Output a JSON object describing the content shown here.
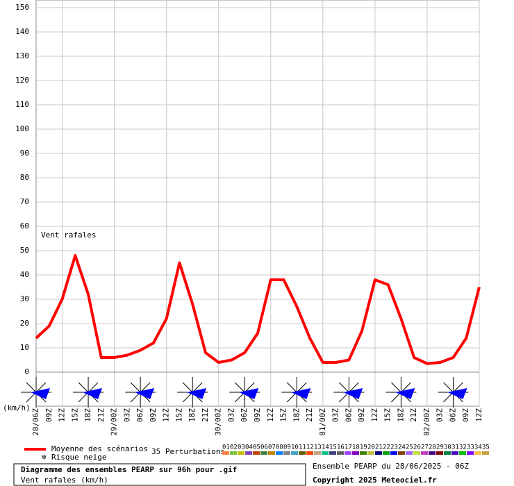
{
  "chart_data": {
    "type": "line",
    "annotation": "Vent rafales",
    "y_unit": "(km/h)",
    "categories": [
      "28/06Z",
      "09Z",
      "12Z",
      "15Z",
      "18Z",
      "21Z",
      "29/00Z",
      "03Z",
      "06Z",
      "09Z",
      "12Z",
      "15Z",
      "18Z",
      "21Z",
      "30/00Z",
      "03Z",
      "06Z",
      "09Z",
      "12Z",
      "15Z",
      "18Z",
      "21Z",
      "01/00Z",
      "03Z",
      "06Z",
      "09Z",
      "12Z",
      "15Z",
      "18Z",
      "21Z",
      "02/00Z",
      "03Z",
      "06Z",
      "09Z",
      "12Z"
    ],
    "series": [
      {
        "name": "Moyenne des scénarios",
        "color": "#ff0000",
        "values": [
          14,
          19,
          30,
          48,
          32,
          6,
          6,
          7,
          9,
          12,
          22,
          45,
          28,
          8,
          4,
          5,
          8,
          16,
          38,
          38,
          27,
          14,
          4,
          4,
          5,
          17,
          38,
          36,
          22,
          6,
          3.5,
          4,
          6,
          14,
          35
        ]
      }
    ],
    "ylim": [
      0,
      150
    ],
    "yticks": [
      0,
      10,
      20,
      30,
      40,
      50,
      60,
      70,
      80,
      90,
      100,
      110,
      120,
      130,
      140,
      150
    ],
    "grid": true,
    "legend": {
      "snow": "Risque neige",
      "perturbations_title": "35 Perturbations",
      "perturbations": [
        {
          "label": "01",
          "color": "#ff8040"
        },
        {
          "label": "02",
          "color": "#80c040"
        },
        {
          "label": "03",
          "color": "#c0c000"
        },
        {
          "label": "04",
          "color": "#8040c0"
        },
        {
          "label": "05",
          "color": "#c04000"
        },
        {
          "label": "06",
          "color": "#408040"
        },
        {
          "label": "07",
          "color": "#c08000"
        },
        {
          "label": "08",
          "color": "#0080ff"
        },
        {
          "label": "09",
          "color": "#808080"
        },
        {
          "label": "10",
          "color": "#40a0c0"
        },
        {
          "label": "11",
          "color": "#606000"
        },
        {
          "label": "12",
          "color": "#ff4000"
        },
        {
          "label": "13",
          "color": "#c0a080"
        },
        {
          "label": "14",
          "color": "#00c080"
        },
        {
          "label": "15",
          "color": "#404080"
        },
        {
          "label": "16",
          "color": "#606060"
        },
        {
          "label": "17",
          "color": "#a040ff"
        },
        {
          "label": "18",
          "color": "#8000c0"
        },
        {
          "label": "19",
          "color": "#408000"
        },
        {
          "label": "20",
          "color": "#c0c040"
        },
        {
          "label": "21",
          "color": "#000080"
        },
        {
          "label": "22",
          "color": "#00a000"
        },
        {
          "label": "23",
          "color": "#0000ff"
        },
        {
          "label": "24",
          "color": "#804000"
        },
        {
          "label": "25",
          "color": "#a060ff"
        },
        {
          "label": "26",
          "color": "#c0e040"
        },
        {
          "label": "27",
          "color": "#c040c0"
        },
        {
          "label": "28",
          "color": "#400080"
        },
        {
          "label": "29",
          "color": "#800000"
        },
        {
          "label": "30",
          "color": "#008040"
        },
        {
          "label": "31",
          "color": "#4000c0"
        },
        {
          "label": "32",
          "color": "#00c000"
        },
        {
          "label": "33",
          "color": "#8000ff"
        },
        {
          "label": "34",
          "color": "#ffc040"
        },
        {
          "label": "35",
          "color": "#c0a040"
        }
      ]
    },
    "footer": {
      "title": "Diagramme des ensembles PEARP sur 96h pour .gif",
      "subtitle": "Vent rafales (km/h)",
      "run": "Ensemble PEARP du 28/06/2025 - 06Z",
      "copyright": "Copyright 2025 Meteociel.fr"
    }
  }
}
